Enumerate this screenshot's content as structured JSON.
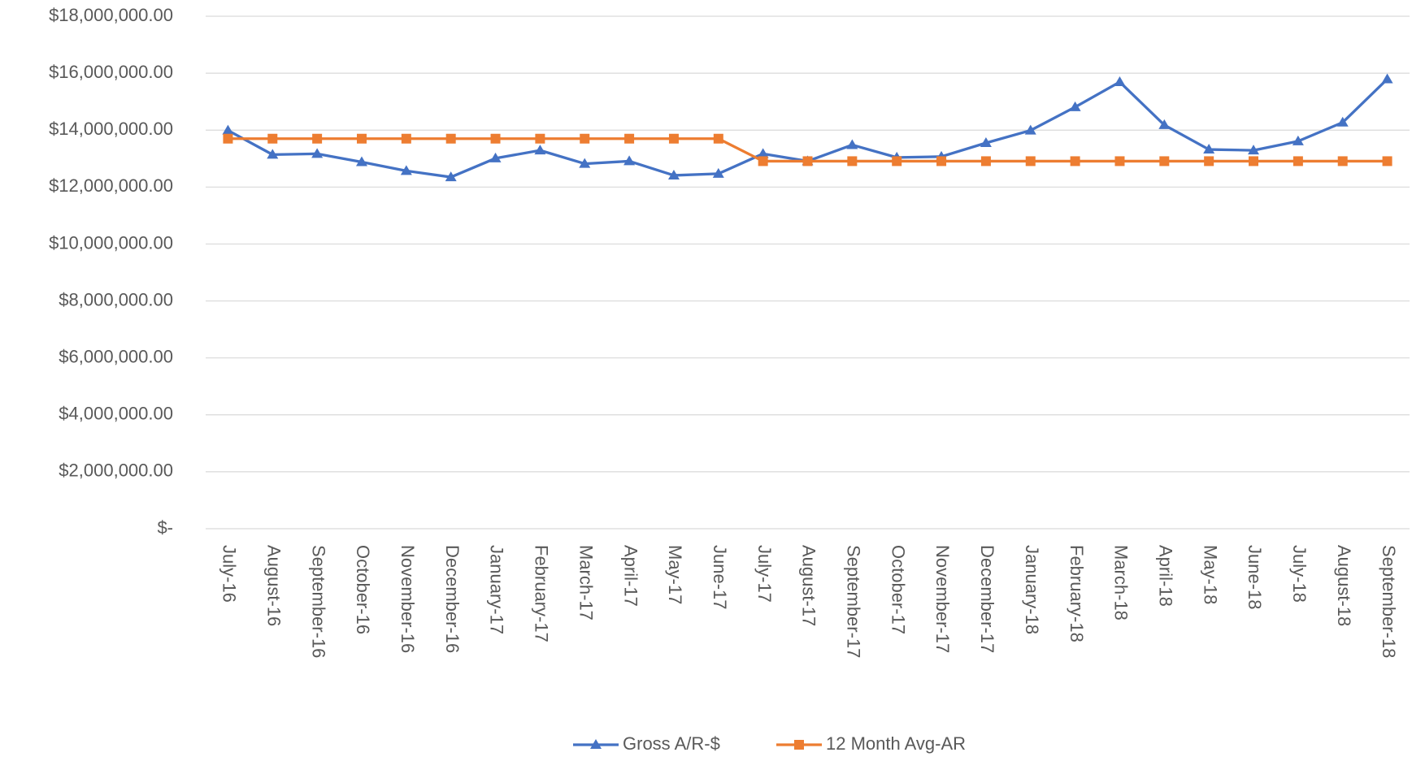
{
  "chart_data": {
    "type": "line",
    "categories": [
      "July-16",
      "August-16",
      "September-16",
      "October-16",
      "November-16",
      "December-16",
      "January-17",
      "February-17",
      "March-17",
      "April-17",
      "May-17",
      "June-17",
      "July-17",
      "August-17",
      "September-17",
      "October-17",
      "November-17",
      "December-17",
      "January-18",
      "February-18",
      "March-18",
      "April-18",
      "May-18",
      "June-18",
      "July-18",
      "August-18",
      "September-18"
    ],
    "series": [
      {
        "name": "Gross A/R-$",
        "color": "#4472c4",
        "marker": "triangle",
        "values": [
          13990000,
          13140000,
          13170000,
          12880000,
          12570000,
          12350000,
          13010000,
          13290000,
          12820000,
          12910000,
          12410000,
          12470000,
          13170000,
          12910000,
          13480000,
          13040000,
          13070000,
          13550000,
          13990000,
          14810000,
          15690000,
          14180000,
          13320000,
          13290000,
          13610000,
          14270000,
          15790000
        ]
      },
      {
        "name": "12 Month Avg-AR",
        "color": "#ed7d31",
        "marker": "square",
        "values": [
          13700000,
          13700000,
          13700000,
          13700000,
          13700000,
          13700000,
          13700000,
          13700000,
          13700000,
          13700000,
          13700000,
          13700000,
          12910000,
          12910000,
          12910000,
          12910000,
          12910000,
          12910000,
          12910000,
          12910000,
          12910000,
          12910000,
          12910000,
          12910000,
          12910000,
          12910000,
          12910000
        ]
      }
    ],
    "ylim": [
      0,
      18000000
    ],
    "yticks": [
      {
        "value": 0,
        "label": "$-"
      },
      {
        "value": 2000000,
        "label": "$2,000,000.00"
      },
      {
        "value": 4000000,
        "label": "$4,000,000.00"
      },
      {
        "value": 6000000,
        "label": "$6,000,000.00"
      },
      {
        "value": 8000000,
        "label": "$8,000,000.00"
      },
      {
        "value": 10000000,
        "label": "$10,000,000.00"
      },
      {
        "value": 12000000,
        "label": "$12,000,000.00"
      },
      {
        "value": 14000000,
        "label": "$14,000,000.00"
      },
      {
        "value": 16000000,
        "label": "$16,000,000.00"
      },
      {
        "value": 18000000,
        "label": "$18,000,000.00"
      }
    ],
    "grid": true,
    "legend": "bottom"
  }
}
